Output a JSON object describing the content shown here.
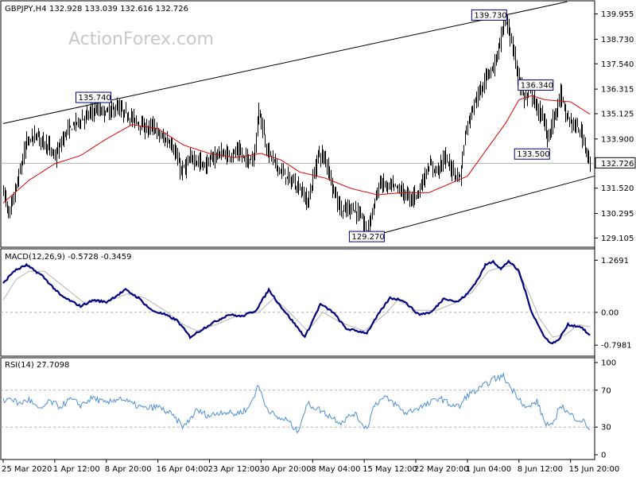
{
  "header": {
    "symbol": "GBPJPY,H4",
    "ohlc": "132.928 133.039 132.616 132.726"
  },
  "watermark": "ActionForex.com",
  "colors": {
    "price_bars": "#000000",
    "moving_average": "#e00000",
    "macd_main": "#000080",
    "macd_signal": "#b4b4b4",
    "rsi_line": "#4f8fd6",
    "callout_border": "#000080"
  },
  "chart_data": [
    {
      "type": "line",
      "name": "price-panel",
      "ylim": [
        128.85,
        140.4
      ],
      "y_ticks": [
        "139.955",
        "138.730",
        "137.540",
        "136.315",
        "135.125",
        "133.900",
        "132.726",
        "131.520",
        "130.295",
        "129.105"
      ],
      "current_price": "132.726",
      "x_ticks": [
        "25 Mar 2020",
        "1 Apr 12:00",
        "8 Apr 20:00",
        "16 Apr 04:00",
        "23 Apr 12:00",
        "30 Apr 20:00",
        "8 May 04:00",
        "15 May 12:00",
        "22 May 20:00",
        "1 Jun 04:00",
        "8 Jun 12:00",
        "15 Jun 20:00"
      ],
      "x_tick_bar_index": [
        0,
        40,
        80,
        120,
        160,
        200,
        240,
        280,
        320,
        360,
        400,
        440
      ],
      "bar_count": 456,
      "anchors": [
        [
          0,
          131.4
        ],
        [
          4,
          130.2
        ],
        [
          10,
          131.6
        ],
        [
          18,
          133.8
        ],
        [
          26,
          134.1
        ],
        [
          34,
          133.6
        ],
        [
          40,
          133.0
        ],
        [
          48,
          134.2
        ],
        [
          56,
          134.7
        ],
        [
          62,
          134.9
        ],
        [
          70,
          135.3
        ],
        [
          80,
          135.2
        ],
        [
          88,
          135.4
        ],
        [
          95,
          135.1
        ],
        [
          100,
          134.9
        ],
        [
          110,
          134.4
        ],
        [
          116,
          134.5
        ],
        [
          122,
          134.0
        ],
        [
          130,
          133.7
        ],
        [
          138,
          132.3
        ],
        [
          146,
          133.0
        ],
        [
          156,
          132.6
        ],
        [
          166,
          133.2
        ],
        [
          174,
          133.1
        ],
        [
          182,
          133.3
        ],
        [
          188,
          132.9
        ],
        [
          194,
          133.0
        ],
        [
          198,
          135.4
        ],
        [
          204,
          133.4
        ],
        [
          214,
          132.4
        ],
        [
          222,
          131.9
        ],
        [
          230,
          131.5
        ],
        [
          236,
          130.8
        ],
        [
          244,
          133.2
        ],
        [
          250,
          132.9
        ],
        [
          256,
          131.4
        ],
        [
          262,
          130.4
        ],
        [
          270,
          130.6
        ],
        [
          276,
          130.2
        ],
        [
          282,
          129.4
        ],
        [
          286,
          130.5
        ],
        [
          292,
          131.8
        ],
        [
          298,
          131.6
        ],
        [
          304,
          131.6
        ],
        [
          310,
          131.3
        ],
        [
          316,
          131.0
        ],
        [
          322,
          131.4
        ],
        [
          330,
          132.6
        ],
        [
          336,
          132.4
        ],
        [
          342,
          133.0
        ],
        [
          348,
          132.4
        ],
        [
          354,
          132.0
        ],
        [
          358,
          134.2
        ],
        [
          362,
          135.1
        ],
        [
          366,
          135.8
        ],
        [
          370,
          136.2
        ],
        [
          374,
          137.0
        ],
        [
          380,
          137.4
        ],
        [
          384,
          138.3
        ],
        [
          388,
          139.5
        ],
        [
          391,
          139.4
        ],
        [
          394,
          138.5
        ],
        [
          398,
          137.2
        ],
        [
          404,
          135.8
        ],
        [
          408,
          136.3
        ],
        [
          414,
          135.3
        ],
        [
          418,
          135.0
        ],
        [
          422,
          133.9
        ],
        [
          428,
          135.2
        ],
        [
          432,
          136.1
        ],
        [
          436,
          135.0
        ],
        [
          442,
          134.6
        ],
        [
          448,
          134.2
        ],
        [
          455,
          132.7
        ]
      ],
      "moving_average_anchors": [
        [
          0,
          130.8
        ],
        [
          20,
          131.9
        ],
        [
          40,
          132.7
        ],
        [
          60,
          133.1
        ],
        [
          80,
          133.9
        ],
        [
          100,
          134.6
        ],
        [
          120,
          134.4
        ],
        [
          140,
          133.6
        ],
        [
          160,
          133.2
        ],
        [
          180,
          133.0
        ],
        [
          200,
          133.2
        ],
        [
          215,
          132.9
        ],
        [
          230,
          132.3
        ],
        [
          250,
          132.0
        ],
        [
          270,
          131.5
        ],
        [
          290,
          131.2
        ],
        [
          310,
          131.3
        ],
        [
          330,
          131.3
        ],
        [
          345,
          131.7
        ],
        [
          360,
          132.1
        ],
        [
          375,
          133.4
        ],
        [
          390,
          134.7
        ],
        [
          400,
          135.8
        ],
        [
          410,
          136.0
        ],
        [
          420,
          135.8
        ],
        [
          440,
          135.7
        ],
        [
          455,
          135.1
        ]
      ],
      "channel_upper": [
        [
          0,
          134.65
        ],
        [
          430,
          140.45
        ]
      ],
      "channel_lower": [
        [
          283,
          129.15
        ],
        [
          456,
          132.0
        ]
      ],
      "labels": [
        {
          "text": "139.730",
          "bar": 388,
          "value": 139.73
        },
        {
          "text": "135.740",
          "bar": 70,
          "value": 135.74
        },
        {
          "text": "136.340",
          "bar": 408,
          "value": 136.34
        },
        {
          "text": "133.500",
          "bar": 420,
          "value": 133.5
        },
        {
          "text": "129.270",
          "bar": 282,
          "value": 129.27
        }
      ]
    },
    {
      "type": "line",
      "name": "macd-panel",
      "title": "MACD(12,26,9) -0.5728 -0.3459",
      "ylim": [
        -0.95,
        1.45
      ],
      "y_ticks": [
        {
          "label": "1.2691",
          "value": 1.2691
        },
        {
          "label": "0.00",
          "value": 0.0
        },
        {
          "label": "-0.7981",
          "value": -0.7981
        }
      ],
      "series": [
        {
          "name": "MACD",
          "anchors": [
            [
              0,
              0.7
            ],
            [
              8,
              1.0
            ],
            [
              18,
              1.15
            ],
            [
              30,
              0.9
            ],
            [
              45,
              0.4
            ],
            [
              60,
              0.15
            ],
            [
              70,
              0.3
            ],
            [
              80,
              0.25
            ],
            [
              95,
              0.55
            ],
            [
              105,
              0.35
            ],
            [
              115,
              0.05
            ],
            [
              125,
              -0.05
            ],
            [
              135,
              -0.2
            ],
            [
              145,
              -0.6
            ],
            [
              160,
              -0.3
            ],
            [
              175,
              -0.05
            ],
            [
              185,
              -0.1
            ],
            [
              196,
              0.05
            ],
            [
              206,
              0.55
            ],
            [
              214,
              0.2
            ],
            [
              224,
              -0.2
            ],
            [
              234,
              -0.6
            ],
            [
              246,
              0.2
            ],
            [
              256,
              0.0
            ],
            [
              266,
              -0.4
            ],
            [
              282,
              -0.5
            ],
            [
              292,
              0.0
            ],
            [
              300,
              0.35
            ],
            [
              310,
              0.3
            ],
            [
              322,
              -0.05
            ],
            [
              332,
              0.0
            ],
            [
              342,
              0.35
            ],
            [
              352,
              0.25
            ],
            [
              360,
              0.45
            ],
            [
              368,
              0.8
            ],
            [
              374,
              1.15
            ],
            [
              380,
              1.25
            ],
            [
              386,
              1.05
            ],
            [
              392,
              1.25
            ],
            [
              400,
              1.0
            ],
            [
              410,
              0.0
            ],
            [
              418,
              -0.5
            ],
            [
              424,
              -0.75
            ],
            [
              430,
              -0.7
            ],
            [
              438,
              -0.3
            ],
            [
              448,
              -0.35
            ],
            [
              455,
              -0.57
            ]
          ]
        },
        {
          "name": "Signal",
          "anchors": [
            [
              0,
              0.3
            ],
            [
              10,
              0.8
            ],
            [
              20,
              1.0
            ],
            [
              32,
              1.0
            ],
            [
              48,
              0.6
            ],
            [
              62,
              0.25
            ],
            [
              80,
              0.25
            ],
            [
              96,
              0.45
            ],
            [
              110,
              0.35
            ],
            [
              125,
              0.05
            ],
            [
              140,
              -0.3
            ],
            [
              150,
              -0.45
            ],
            [
              165,
              -0.3
            ],
            [
              180,
              -0.1
            ],
            [
              198,
              0.0
            ],
            [
              210,
              0.35
            ],
            [
              222,
              0.0
            ],
            [
              236,
              -0.45
            ],
            [
              248,
              0.0
            ],
            [
              262,
              -0.25
            ],
            [
              280,
              -0.45
            ],
            [
              296,
              -0.05
            ],
            [
              306,
              0.3
            ],
            [
              320,
              0.05
            ],
            [
              336,
              0.05
            ],
            [
              352,
              0.25
            ],
            [
              364,
              0.5
            ],
            [
              376,
              1.0
            ],
            [
              386,
              1.1
            ],
            [
              396,
              1.15
            ],
            [
              406,
              0.6
            ],
            [
              416,
              -0.15
            ],
            [
              426,
              -0.6
            ],
            [
              436,
              -0.55
            ],
            [
              446,
              -0.3
            ],
            [
              455,
              -0.35
            ]
          ]
        }
      ]
    },
    {
      "type": "line",
      "name": "rsi-panel",
      "title": "RSI(14) 27.7098",
      "ylim": [
        0,
        100
      ],
      "y_ticks": [
        {
          "label": "100",
          "value": 100
        },
        {
          "label": "70",
          "value": 70
        },
        {
          "label": "30",
          "value": 30
        },
        {
          "label": "0",
          "value": 0
        }
      ],
      "levels": [
        70,
        30
      ],
      "series": [
        {
          "name": "RSI(14)",
          "anchors": [
            [
              0,
              58
            ],
            [
              6,
              62
            ],
            [
              12,
              55
            ],
            [
              20,
              60
            ],
            [
              28,
              48
            ],
            [
              36,
              58
            ],
            [
              44,
              52
            ],
            [
              52,
              60
            ],
            [
              60,
              54
            ],
            [
              70,
              62
            ],
            [
              80,
              55
            ],
            [
              90,
              62
            ],
            [
              100,
              55
            ],
            [
              110,
              50
            ],
            [
              120,
              52
            ],
            [
              130,
              44
            ],
            [
              140,
              30
            ],
            [
              150,
              48
            ],
            [
              160,
              42
            ],
            [
              170,
              47
            ],
            [
              180,
              44
            ],
            [
              190,
              50
            ],
            [
              198,
              75
            ],
            [
              204,
              52
            ],
            [
              212,
              40
            ],
            [
              220,
              38
            ],
            [
              228,
              25
            ],
            [
              236,
              55
            ],
            [
              244,
              50
            ],
            [
              252,
              43
            ],
            [
              262,
              35
            ],
            [
              272,
              45
            ],
            [
              282,
              28
            ],
            [
              288,
              55
            ],
            [
              296,
              62
            ],
            [
              304,
              55
            ],
            [
              312,
              45
            ],
            [
              320,
              50
            ],
            [
              330,
              55
            ],
            [
              338,
              62
            ],
            [
              346,
              55
            ],
            [
              354,
              52
            ],
            [
              360,
              65
            ],
            [
              368,
              70
            ],
            [
              374,
              76
            ],
            [
              380,
              82
            ],
            [
              388,
              85
            ],
            [
              394,
              72
            ],
            [
              400,
              62
            ],
            [
              406,
              50
            ],
            [
              414,
              58
            ],
            [
              420,
              35
            ],
            [
              426,
              30
            ],
            [
              432,
              55
            ],
            [
              438,
              45
            ],
            [
              444,
              40
            ],
            [
              450,
              36
            ],
            [
              455,
              27.7
            ]
          ]
        }
      ]
    }
  ]
}
